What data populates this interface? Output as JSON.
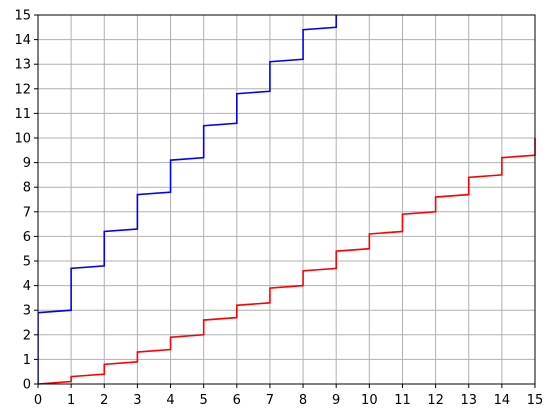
{
  "chart_data": {
    "type": "line",
    "title": "",
    "xlabel": "",
    "ylabel": "",
    "xlim": [
      0,
      15
    ],
    "ylim": [
      0,
      15
    ],
    "xticks": [
      "0",
      "1",
      "2",
      "3",
      "4",
      "5",
      "6",
      "7",
      "8",
      "9",
      "10",
      "11",
      "12",
      "13",
      "14",
      "15"
    ],
    "yticks": [
      "0",
      "1",
      "2",
      "3",
      "4",
      "5",
      "6",
      "7",
      "8",
      "9",
      "10",
      "11",
      "12",
      "13",
      "14",
      "15"
    ],
    "grid": true,
    "legend": "none",
    "series": [
      {
        "color": "#0000ff",
        "x": [
          0,
          0,
          1,
          1,
          2,
          2,
          3,
          3,
          4,
          4,
          5,
          5,
          6,
          6,
          7,
          7,
          8,
          8,
          9,
          9
        ],
        "y": [
          0,
          2.9,
          3.0,
          4.7,
          4.8,
          6.2,
          6.3,
          7.7,
          7.8,
          9.1,
          9.2,
          10.5,
          10.6,
          11.8,
          11.9,
          13.1,
          13.2,
          14.4,
          14.5,
          15.0
        ]
      },
      {
        "color": "#ff0000",
        "x": [
          0,
          1,
          1,
          2,
          2,
          3,
          3,
          4,
          4,
          5,
          5,
          6,
          6,
          7,
          7,
          8,
          8,
          9,
          9,
          10,
          10,
          11,
          11,
          12,
          12,
          13,
          13,
          14,
          14,
          15,
          15
        ],
        "y": [
          0,
          0.1,
          0.3,
          0.4,
          0.8,
          0.9,
          1.3,
          1.4,
          1.9,
          2.0,
          2.6,
          2.7,
          3.2,
          3.3,
          3.9,
          4.0,
          4.6,
          4.7,
          5.4,
          5.5,
          6.1,
          6.2,
          6.9,
          7.0,
          7.6,
          7.7,
          8.4,
          8.5,
          9.2,
          9.3,
          10.0
        ]
      }
    ]
  }
}
